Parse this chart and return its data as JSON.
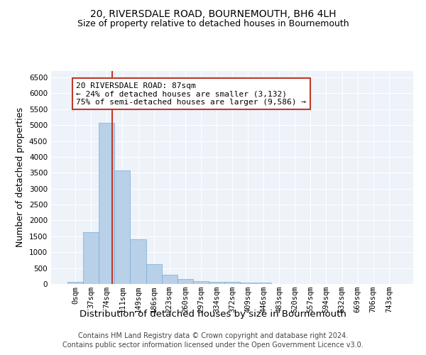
{
  "title_line1": "20, RIVERSDALE ROAD, BOURNEMOUTH, BH6 4LH",
  "title_line2": "Size of property relative to detached houses in Bournemouth",
  "xlabel": "Distribution of detached houses by size in Bournemouth",
  "ylabel": "Number of detached properties",
  "bar_color": "#b8d0e8",
  "bar_edge_color": "#7aadd4",
  "bar_categories": [
    "0sqm",
    "37sqm",
    "74sqm",
    "111sqm",
    "149sqm",
    "186sqm",
    "223sqm",
    "260sqm",
    "297sqm",
    "334sqm",
    "372sqm",
    "409sqm",
    "446sqm",
    "483sqm",
    "520sqm",
    "557sqm",
    "594sqm",
    "632sqm",
    "669sqm",
    "706sqm",
    "743sqm"
  ],
  "bar_values": [
    75,
    1620,
    5080,
    3580,
    1400,
    620,
    300,
    150,
    100,
    70,
    60,
    50,
    50,
    10,
    5,
    5,
    5,
    5,
    5,
    5,
    5
  ],
  "bar_width": 1.0,
  "ylim": [
    0,
    6700
  ],
  "yticks": [
    0,
    500,
    1000,
    1500,
    2000,
    2500,
    3000,
    3500,
    4000,
    4500,
    5000,
    5500,
    6000,
    6500
  ],
  "vline_x": 2.35,
  "vline_color": "#c0392b",
  "annotation_box_text": "20 RIVERSDALE ROAD: 87sqm\n← 24% of detached houses are smaller (3,132)\n75% of semi-detached houses are larger (9,586) →",
  "footer_line1": "Contains HM Land Registry data © Crown copyright and database right 2024.",
  "footer_line2": "Contains public sector information licensed under the Open Government Licence v3.0.",
  "background_color": "#eef2f9",
  "grid_color": "#ffffff",
  "title_fontsize": 10,
  "subtitle_fontsize": 9,
  "axis_label_fontsize": 9,
  "tick_fontsize": 7.5,
  "footer_fontsize": 7,
  "annot_fontsize": 8
}
